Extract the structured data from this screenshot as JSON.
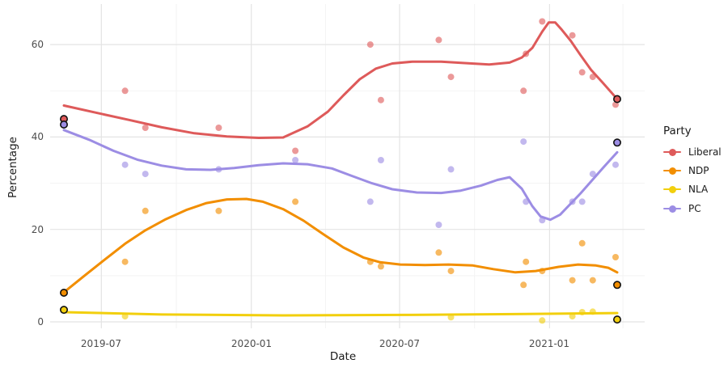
{
  "chart_data": {
    "type": "scatter",
    "title": "",
    "xlabel": "Date",
    "ylabel": "Percentage",
    "legend_title": "Party",
    "legend_position": "right",
    "background": "#FFFFFF",
    "grid": {
      "major": "#E4E4E4",
      "minor": "#F2F2F2",
      "visible": true
    },
    "text_colors": {
      "ticks": "#4D4D4D",
      "titles": "#1A1A1A"
    },
    "x_domain": [
      "2019-05-16",
      "2021-03-25"
    ],
    "ylim": [
      0,
      67
    ],
    "y_major_ticks": [
      {
        "value": 0,
        "label": "0"
      },
      {
        "value": 20,
        "label": "20"
      },
      {
        "value": 40,
        "label": "40"
      },
      {
        "value": 60,
        "label": "60"
      }
    ],
    "y_minor_ticks": [
      10,
      30,
      50
    ],
    "x_major_ticks": [
      {
        "date": "2019-07-01",
        "label": "2019-07"
      },
      {
        "date": "2020-01-01",
        "label": "2020-01"
      },
      {
        "date": "2020-07-01",
        "label": "2020-07"
      },
      {
        "date": "2021-01-01",
        "label": "2021-01"
      }
    ],
    "x_minor_dates": [
      "2019-10-01",
      "2020-04-01",
      "2020-10-01",
      "2021-04-01"
    ],
    "point_style": {
      "radius": 4,
      "opacity": 0.62,
      "election_radius": 4.2,
      "election_outline": "#111111"
    },
    "line_width": 3,
    "series": [
      {
        "name": "Liberal",
        "color": "#DE5A5A",
        "points": [
          [
            "2019-07-30",
            50
          ],
          [
            "2019-08-24",
            42
          ],
          [
            "2019-11-22",
            42
          ],
          [
            "2020-02-24",
            37
          ],
          [
            "2020-05-26",
            60
          ],
          [
            "2020-06-08",
            48
          ],
          [
            "2020-08-18",
            61
          ],
          [
            "2020-09-02",
            53
          ],
          [
            "2020-11-30",
            50
          ],
          [
            "2020-12-03",
            58
          ],
          [
            "2020-12-23",
            65
          ],
          [
            "2021-01-29",
            62
          ],
          [
            "2021-02-10",
            54
          ],
          [
            "2021-02-23",
            53
          ],
          [
            "2021-03-23",
            47
          ]
        ],
        "elections": [
          [
            "2019-05-16",
            43.9
          ],
          [
            "2021-03-25",
            48.2
          ]
        ],
        "smooth": [
          [
            "2019-05-16",
            46.8
          ],
          [
            "2019-06-26",
            45.2
          ],
          [
            "2019-08-04",
            43.7
          ],
          [
            "2019-09-13",
            42.1
          ],
          [
            "2019-10-23",
            40.8
          ],
          [
            "2019-12-02",
            40.1
          ],
          [
            "2020-01-10",
            39.8
          ],
          [
            "2020-02-09",
            39.9
          ],
          [
            "2020-03-10",
            42.3
          ],
          [
            "2020-04-04",
            45.5
          ],
          [
            "2020-04-23",
            49.0
          ],
          [
            "2020-05-13",
            52.5
          ],
          [
            "2020-06-02",
            54.8
          ],
          [
            "2020-06-22",
            55.9
          ],
          [
            "2020-07-17",
            56.3
          ],
          [
            "2020-08-21",
            56.3
          ],
          [
            "2020-09-19",
            56.0
          ],
          [
            "2020-10-19",
            55.7
          ],
          [
            "2020-11-13",
            56.1
          ],
          [
            "2020-11-28",
            57.2
          ],
          [
            "2020-12-11",
            59.3
          ],
          [
            "2020-12-23",
            62.8
          ],
          [
            "2020-12-31",
            64.8
          ],
          [
            "2021-01-08",
            64.8
          ],
          [
            "2021-01-16",
            63.2
          ],
          [
            "2021-01-27",
            60.8
          ],
          [
            "2021-02-08",
            57.7
          ],
          [
            "2021-02-21",
            54.5
          ],
          [
            "2021-03-07",
            51.8
          ],
          [
            "2021-03-25",
            48.2
          ]
        ]
      },
      {
        "name": "NDP",
        "color": "#F28E00",
        "points": [
          [
            "2019-07-30",
            13
          ],
          [
            "2019-08-24",
            24
          ],
          [
            "2019-11-22",
            24
          ],
          [
            "2020-02-24",
            26
          ],
          [
            "2020-05-26",
            13
          ],
          [
            "2020-06-08",
            12
          ],
          [
            "2020-08-18",
            15
          ],
          [
            "2020-09-02",
            11
          ],
          [
            "2020-11-30",
            8
          ],
          [
            "2020-12-03",
            13
          ],
          [
            "2020-12-23",
            11
          ],
          [
            "2021-01-29",
            9
          ],
          [
            "2021-02-10",
            17
          ],
          [
            "2021-02-23",
            9
          ],
          [
            "2021-03-23",
            14
          ]
        ],
        "elections": [
          [
            "2019-05-16",
            6.3
          ],
          [
            "2021-03-25",
            8.0
          ]
        ],
        "smooth": [
          [
            "2019-05-16",
            6.4
          ],
          [
            "2019-06-11",
            10.1
          ],
          [
            "2019-07-06",
            13.6
          ],
          [
            "2019-07-30",
            16.9
          ],
          [
            "2019-08-24",
            19.8
          ],
          [
            "2019-09-18",
            22.2
          ],
          [
            "2019-10-13",
            24.2
          ],
          [
            "2019-11-07",
            25.7
          ],
          [
            "2019-12-02",
            26.5
          ],
          [
            "2019-12-26",
            26.6
          ],
          [
            "2020-01-15",
            26.0
          ],
          [
            "2020-02-09",
            24.4
          ],
          [
            "2020-03-05",
            21.9
          ],
          [
            "2020-03-30",
            18.9
          ],
          [
            "2020-04-23",
            16.1
          ],
          [
            "2020-05-18",
            13.9
          ],
          [
            "2020-06-07",
            12.9
          ],
          [
            "2020-07-02",
            12.4
          ],
          [
            "2020-08-01",
            12.3
          ],
          [
            "2020-08-30",
            12.4
          ],
          [
            "2020-09-29",
            12.2
          ],
          [
            "2020-10-24",
            11.4
          ],
          [
            "2020-11-20",
            10.7
          ],
          [
            "2020-12-15",
            11.0
          ],
          [
            "2021-01-12",
            11.9
          ],
          [
            "2021-02-05",
            12.4
          ],
          [
            "2021-02-27",
            12.2
          ],
          [
            "2021-03-14",
            11.7
          ],
          [
            "2021-03-25",
            10.7
          ]
        ]
      },
      {
        "name": "NLA",
        "color": "#F2CF0D",
        "points": [
          [
            "2019-07-30",
            1.2
          ],
          [
            "2020-09-02",
            1.0
          ],
          [
            "2020-12-23",
            0.3
          ],
          [
            "2021-01-29",
            1.2
          ],
          [
            "2021-02-10",
            2.1
          ],
          [
            "2021-02-23",
            2.2
          ]
        ],
        "elections": [
          [
            "2019-05-16",
            2.6
          ],
          [
            "2021-03-25",
            0.5
          ]
        ],
        "smooth": [
          [
            "2019-05-16",
            2.1
          ],
          [
            "2019-09-13",
            1.6
          ],
          [
            "2020-02-09",
            1.4
          ],
          [
            "2020-07-07",
            1.5
          ],
          [
            "2020-12-03",
            1.7
          ],
          [
            "2021-03-25",
            1.9
          ]
        ]
      },
      {
        "name": "PC",
        "color": "#9C8DE4",
        "points": [
          [
            "2019-07-30",
            34
          ],
          [
            "2019-08-24",
            32
          ],
          [
            "2019-11-22",
            33
          ],
          [
            "2020-02-24",
            35
          ],
          [
            "2020-05-26",
            26
          ],
          [
            "2020-06-08",
            35
          ],
          [
            "2020-08-18",
            21
          ],
          [
            "2020-09-02",
            33
          ],
          [
            "2020-11-30",
            39
          ],
          [
            "2020-12-03",
            26
          ],
          [
            "2020-12-23",
            22
          ],
          [
            "2021-01-29",
            26
          ],
          [
            "2021-02-10",
            26
          ],
          [
            "2021-02-23",
            32
          ],
          [
            "2021-03-23",
            34
          ]
        ],
        "elections": [
          [
            "2019-05-16",
            42.7
          ],
          [
            "2021-03-25",
            38.8
          ]
        ],
        "smooth": [
          [
            "2019-05-16",
            41.5
          ],
          [
            "2019-06-16",
            39.4
          ],
          [
            "2019-07-16",
            37.0
          ],
          [
            "2019-08-14",
            35.1
          ],
          [
            "2019-09-13",
            33.8
          ],
          [
            "2019-10-13",
            33.0
          ],
          [
            "2019-11-12",
            32.9
          ],
          [
            "2019-12-11",
            33.3
          ],
          [
            "2020-01-10",
            33.9
          ],
          [
            "2020-02-09",
            34.3
          ],
          [
            "2020-03-10",
            34.1
          ],
          [
            "2020-04-09",
            33.2
          ],
          [
            "2020-05-03",
            31.6
          ],
          [
            "2020-05-28",
            30.0
          ],
          [
            "2020-06-22",
            28.7
          ],
          [
            "2020-07-22",
            28.0
          ],
          [
            "2020-08-21",
            27.9
          ],
          [
            "2020-09-14",
            28.4
          ],
          [
            "2020-10-09",
            29.5
          ],
          [
            "2020-10-29",
            30.7
          ],
          [
            "2020-11-13",
            31.3
          ],
          [
            "2020-11-28",
            28.8
          ],
          [
            "2020-12-11",
            25.0
          ],
          [
            "2020-12-21",
            22.8
          ],
          [
            "2021-01-02",
            22.1
          ],
          [
            "2021-01-14",
            23.2
          ],
          [
            "2021-01-26",
            25.4
          ],
          [
            "2021-02-08",
            27.8
          ],
          [
            "2021-02-22",
            30.6
          ],
          [
            "2021-03-08",
            33.4
          ],
          [
            "2021-03-25",
            36.7
          ]
        ]
      }
    ]
  }
}
